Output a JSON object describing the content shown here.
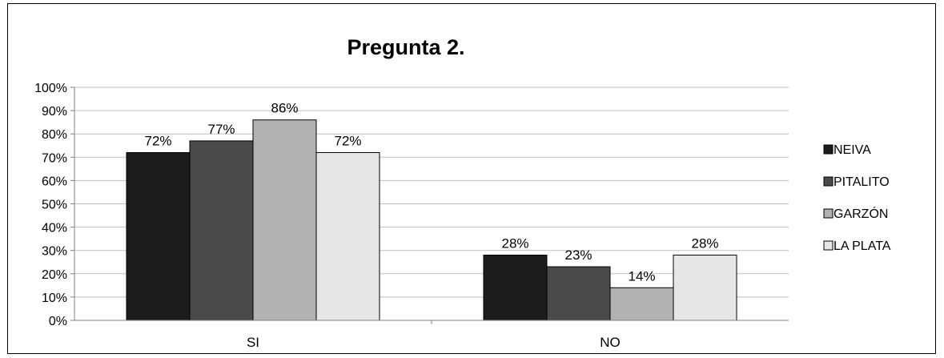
{
  "chart_data": {
    "type": "bar",
    "title": "Pregunta 2.",
    "categories": [
      "SI",
      "NO"
    ],
    "series": [
      {
        "name": "NEIVA",
        "values": [
          72,
          28
        ],
        "labels": [
          "72%",
          "28%"
        ],
        "color": "#1c1c1c"
      },
      {
        "name": "PITALITO",
        "values": [
          77,
          23
        ],
        "labels": [
          "77%",
          "23%"
        ],
        "color": "#4a4a4a"
      },
      {
        "name": "GARZÓN",
        "values": [
          86,
          14
        ],
        "labels": [
          "86%",
          "14%"
        ],
        "color": "#b2b2b2"
      },
      {
        "name": "LA PLATA",
        "values": [
          72,
          28
        ],
        "labels": [
          "72%",
          "28%"
        ],
        "color": "#e6e6e6"
      }
    ],
    "ylim": [
      0,
      100
    ],
    "yticks": [
      "0%",
      "10%",
      "20%",
      "30%",
      "40%",
      "50%",
      "60%",
      "70%",
      "80%",
      "90%",
      "100%"
    ],
    "ytick_values": [
      0,
      10,
      20,
      30,
      40,
      50,
      60,
      70,
      80,
      90,
      100
    ],
    "grid": true,
    "legend": "right"
  }
}
